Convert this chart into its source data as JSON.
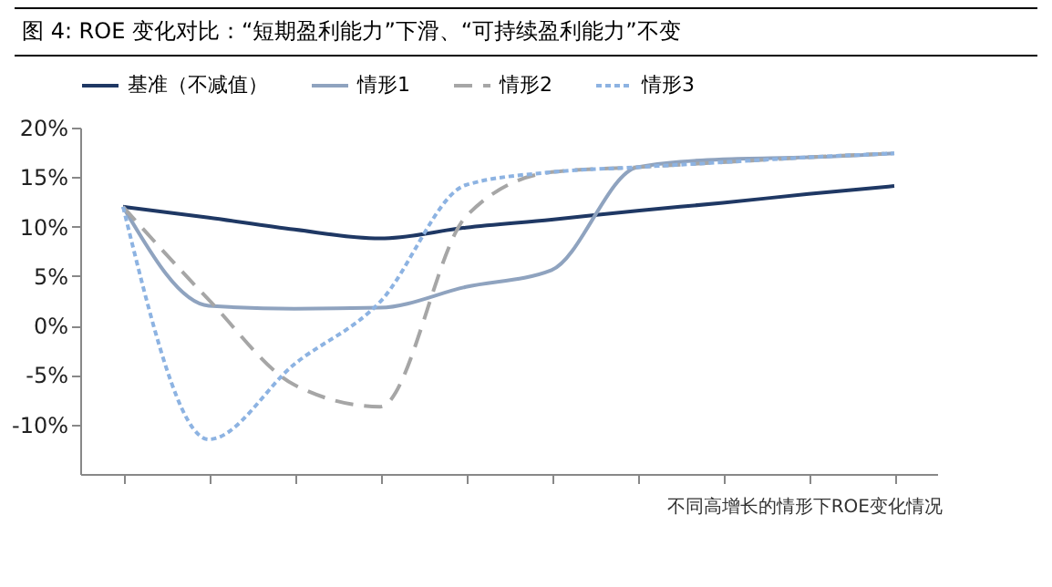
{
  "chart_data": {
    "type": "line",
    "title": "图 4: ROE 变化对比：“短期盈利能力”下滑、“可持续盈利能力”不变",
    "categories": [
      null,
      null,
      null,
      null,
      null,
      null,
      null,
      null,
      null,
      null
    ],
    "series": [
      {
        "name": "基准（不减值）",
        "color": "#1f3864",
        "line_style": "solid",
        "values": [
          12,
          10.9,
          9.7,
          8.8,
          9.9,
          10.7,
          11.6,
          12.4,
          13.3,
          14.1
        ]
      },
      {
        "name": "情形1",
        "color": "#8fa3bf",
        "line_style": "solid",
        "values": [
          12,
          2.0,
          1.7,
          1.8,
          3.9,
          5.6,
          16.0,
          16.8,
          17.0,
          17.4
        ]
      },
      {
        "name": "情形2",
        "color": "#a6a6a6",
        "line_style": "dashed",
        "values": [
          12,
          2.6,
          -6.0,
          -8.2,
          11,
          15.5,
          16.0,
          16.5,
          17.0,
          17.4
        ]
      },
      {
        "name": "情形3",
        "color": "#8db3e2",
        "line_style": "dotted",
        "values": [
          12,
          -11.5,
          -3.9,
          2.4,
          14.2,
          15.5,
          16.0,
          16.5,
          17.0,
          17.4
        ]
      }
    ],
    "ylim": [
      -15,
      20
    ],
    "yticks": [
      {
        "value": -10,
        "label": "-10%"
      },
      {
        "value": -5,
        "label": "-5%"
      },
      {
        "value": 0,
        "label": "0%"
      },
      {
        "value": 5,
        "label": "5%"
      },
      {
        "value": 10,
        "label": "10%"
      },
      {
        "value": 15,
        "label": "15%"
      },
      {
        "value": 20,
        "label": "20%"
      }
    ],
    "tick_labels": "y",
    "legend": "top",
    "annotations": [
      "不同高增长的情形下ROE变化情况"
    ]
  }
}
